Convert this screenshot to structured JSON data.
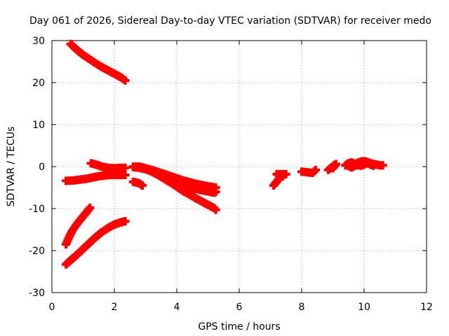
{
  "chart_data": {
    "type": "scatter",
    "title": "Day 061 of 2026, Sidereal Day-to-day VTEC variation (SDTVAR) for receiver medo",
    "xlabel": "GPS time / hours",
    "ylabel": "SDTVAR / TECUs",
    "xlim": [
      0,
      12
    ],
    "ylim": [
      -30,
      30
    ],
    "xticks": [
      "0",
      "2",
      "4",
      "6",
      "8",
      "10",
      "12"
    ],
    "yticks": [
      "-30",
      "-20",
      "-10",
      "0",
      "10",
      "20",
      "30"
    ],
    "grid": true,
    "marker": "plus",
    "color": "#ff0000",
    "series": [
      {
        "x": [
          0.6,
          0.8,
          1.0,
          1.2,
          1.4,
          1.6,
          1.8,
          2.0,
          2.2,
          2.35
        ],
        "y": [
          29.2,
          27.8,
          26.6,
          25.6,
          24.6,
          23.7,
          22.9,
          22.1,
          21.3,
          20.5
        ]
      },
      {
        "x": [
          1.25,
          1.4,
          1.6,
          1.8,
          2.0,
          2.2,
          2.35
        ],
        "y": [
          0.8,
          0.5,
          0.0,
          -0.3,
          -0.4,
          -0.3,
          -0.3
        ]
      },
      {
        "x": [
          0.45,
          0.7,
          0.9,
          1.1,
          1.3,
          1.5,
          1.7,
          1.9,
          2.1,
          2.3,
          2.35
        ],
        "y": [
          -3.4,
          -3.3,
          -3.1,
          -2.9,
          -2.6,
          -2.3,
          -2.1,
          -2.0,
          -2.0,
          -2.0,
          -2.0
        ]
      },
      {
        "x": [
          0.45,
          0.55,
          0.65,
          0.75,
          0.85,
          0.95,
          1.05,
          1.15,
          1.22
        ],
        "y": [
          -18.5,
          -16.8,
          -15.3,
          -14.2,
          -13.2,
          -12.3,
          -11.4,
          -10.5,
          -9.8
        ]
      },
      {
        "x": [
          0.45,
          0.6,
          0.8,
          1.0,
          1.2,
          1.4,
          1.6,
          1.8,
          2.0,
          2.2,
          2.35
        ],
        "y": [
          -23.3,
          -22.3,
          -21.0,
          -19.6,
          -18.2,
          -16.8,
          -15.6,
          -14.6,
          -13.8,
          -13.3,
          -13.0
        ]
      },
      {
        "x": [
          2.6,
          2.7,
          2.8,
          2.9
        ],
        "y": [
          -3.6,
          -3.8,
          -4.0,
          -4.5
        ]
      },
      {
        "x": [
          2.6,
          2.8,
          3.0,
          3.2,
          3.4,
          3.6,
          3.8,
          4.0,
          4.2,
          4.4,
          4.6,
          4.8,
          5.0,
          5.2,
          5.25
        ],
        "y": [
          -0.1,
          -0.3,
          -0.6,
          -1.2,
          -2.0,
          -2.9,
          -3.8,
          -4.8,
          -5.8,
          -6.6,
          -7.5,
          -8.3,
          -9.1,
          -9.9,
          -10.3
        ]
      },
      {
        "x": [
          2.6,
          2.8,
          3.0,
          3.2,
          3.4,
          3.6,
          3.8,
          4.0,
          4.2,
          4.4,
          4.6,
          4.8,
          5.0,
          5.25
        ],
        "y": [
          0.0,
          0.0,
          -0.4,
          -0.8,
          -1.3,
          -1.8,
          -2.3,
          -2.8,
          -3.3,
          -3.7,
          -4.1,
          -4.4,
          -4.7,
          -5.0
        ]
      },
      {
        "x": [
          3.0,
          3.2,
          3.4,
          3.6,
          3.8,
          4.0,
          4.2,
          4.4,
          4.6,
          4.8,
          5.0,
          5.25
        ],
        "y": [
          -0.6,
          -1.1,
          -1.7,
          -2.3,
          -2.9,
          -3.4,
          -4.0,
          -4.6,
          -5.0,
          -5.4,
          -5.7,
          -6.0
        ]
      },
      {
        "x": [
          3.8,
          4.0,
          4.2,
          4.4,
          4.6,
          4.8,
          5.0,
          5.2
        ],
        "y": [
          -3.3,
          -3.8,
          -4.3,
          -4.9,
          -5.3,
          -5.6,
          -5.9,
          -6.2
        ]
      },
      {
        "x": [
          7.1,
          7.2,
          7.3,
          7.4,
          7.5,
          7.2,
          7.3,
          7.4
        ],
        "y": [
          -4.5,
          -3.6,
          -2.6,
          -2.0,
          -1.8,
          -1.8,
          -2.1,
          -2.3
        ]
      },
      {
        "x": [
          8.0,
          8.35,
          8.45
        ],
        "y": [
          -1.2,
          -1.5,
          -0.8
        ]
      },
      {
        "x": [
          8.85,
          8.95,
          9.05,
          9.1,
          9.0
        ],
        "y": [
          -0.8,
          -0.2,
          0.4,
          0.6,
          -0.4
        ]
      },
      {
        "x": [
          9.4,
          9.5,
          9.6,
          9.7,
          9.8,
          9.9,
          10.0,
          10.1,
          10.2,
          10.3,
          10.4,
          10.5,
          10.6
        ],
        "y": [
          0.3,
          0.8,
          1.0,
          0.6,
          0.9,
          1.2,
          1.3,
          1.1,
          0.8,
          0.6,
          0.5,
          0.3,
          0.3
        ]
      },
      {
        "x": [
          9.5,
          9.6,
          9.7,
          9.8,
          9.9,
          10.0,
          10.1,
          10.2,
          10.3
        ],
        "y": [
          0.1,
          -0.2,
          0.2,
          0.4,
          0.2,
          0.5,
          0.9,
          0.5,
          0.2
        ]
      }
    ]
  }
}
